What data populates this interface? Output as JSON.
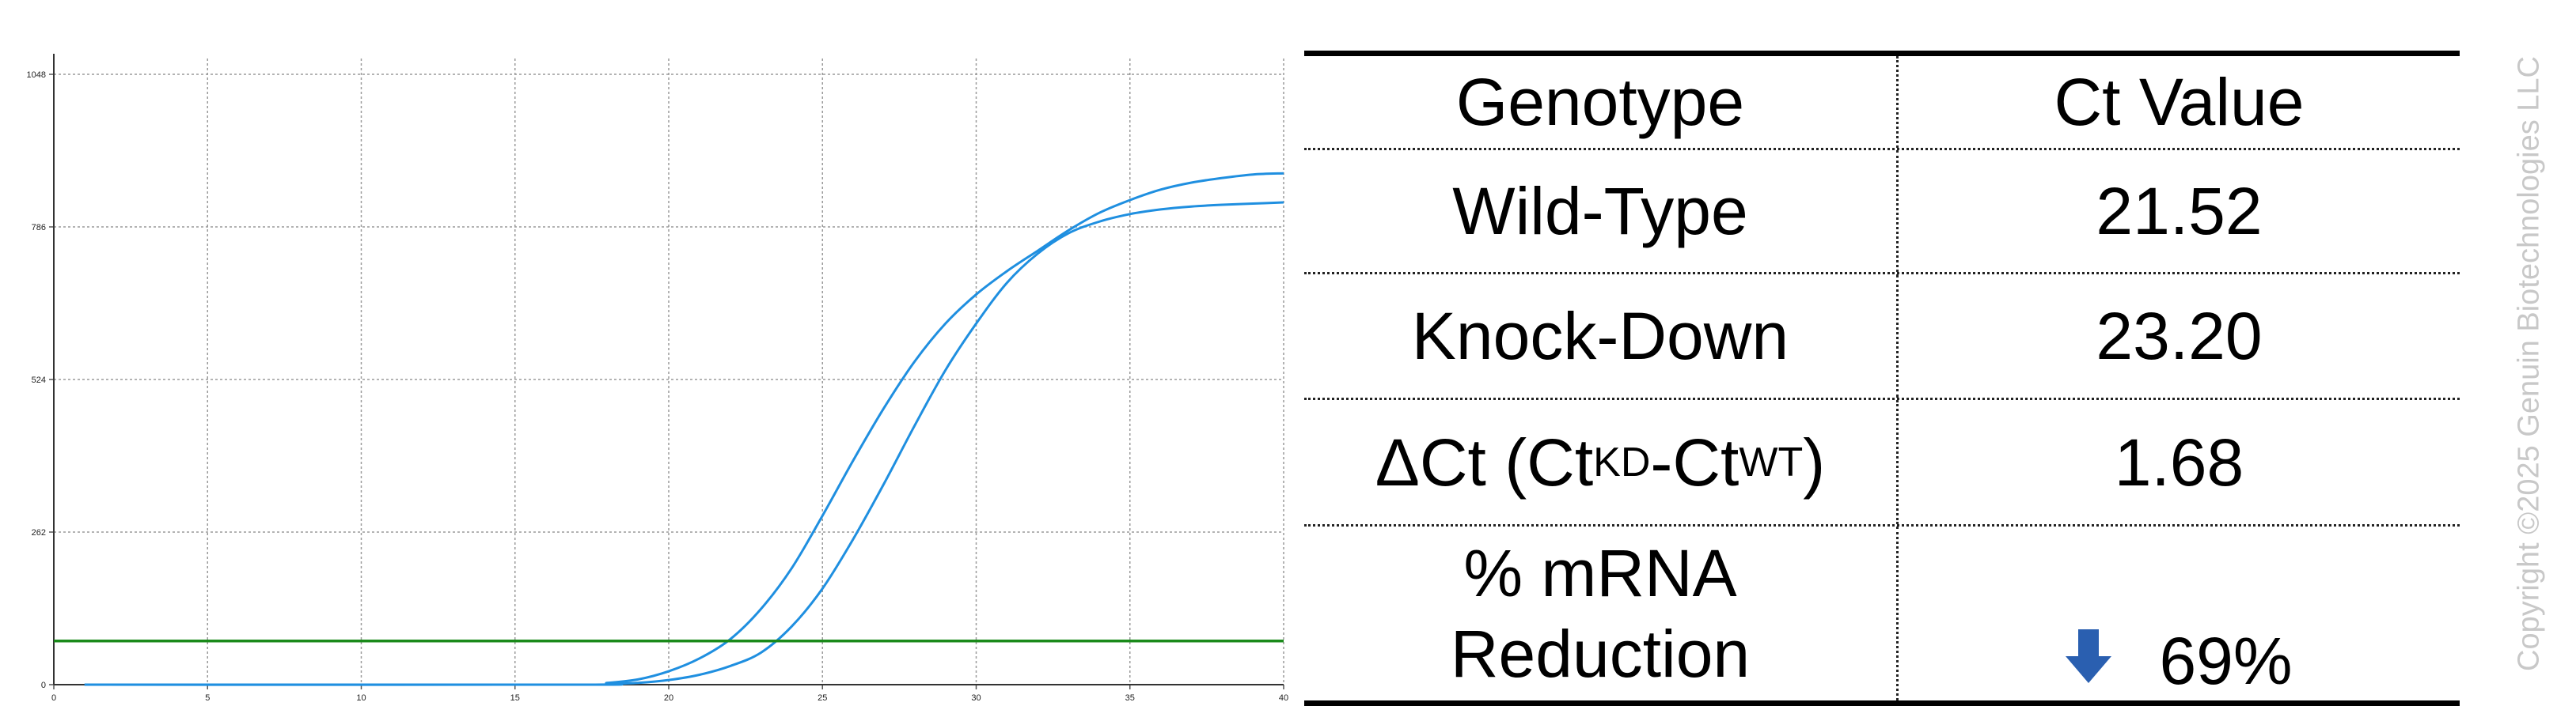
{
  "chart_data": {
    "type": "line",
    "xlim": [
      0,
      40
    ],
    "ylim": [
      0,
      1048
    ],
    "x_ticks": [
      "0",
      "5",
      "10",
      "15",
      "20",
      "25",
      "30",
      "35",
      "40"
    ],
    "y_ticks": [
      "0",
      "262",
      "524",
      "786",
      "1048"
    ],
    "grid": true,
    "series": [
      {
        "color": "#1f8fe0",
        "x": [
          1,
          17,
          18,
          19,
          20,
          21,
          22,
          23,
          24,
          25,
          26,
          27,
          28,
          29,
          30,
          31,
          32,
          33,
          34,
          35,
          36,
          37,
          38,
          39,
          40
        ],
        "y": [
          0,
          0,
          3,
          9,
          23,
          45,
          78,
          130,
          200,
          290,
          385,
          475,
          555,
          620,
          670,
          710,
          745,
          780,
          810,
          832,
          850,
          862,
          870,
          876,
          878
        ]
      },
      {
        "color": "#1f8fe0",
        "x": [
          1,
          17,
          18,
          19,
          20,
          21,
          22,
          23,
          24,
          25,
          26,
          27,
          28,
          29,
          30,
          31,
          32,
          33,
          34,
          35,
          36,
          37,
          38,
          39,
          40
        ],
        "y": [
          0,
          0,
          1,
          3,
          8,
          17,
          32,
          55,
          100,
          165,
          250,
          345,
          445,
          540,
          620,
          690,
          740,
          775,
          795,
          808,
          816,
          821,
          824,
          826,
          828
        ]
      }
    ],
    "threshold": {
      "y": 75,
      "color": "#1a8a1a"
    }
  },
  "table": {
    "headers": [
      "Genotype",
      "Ct Value"
    ],
    "rows": [
      {
        "label": "Wild-Type",
        "value": "21.52"
      },
      {
        "label": "Knock-Down",
        "value": "23.20"
      }
    ],
    "delta_row": {
      "prefix": "ΔCt (Ct",
      "sub_kd": "KD",
      "mid": "-Ct",
      "sub_wt": "WT",
      "suffix": ")",
      "value": "1.68"
    },
    "reduction_row": {
      "label_line1": "% mRNA",
      "label_line2": "Reduction",
      "value": "69%",
      "arrow_icon": "down-arrow-icon",
      "arrow_color": "#2a5fb0"
    }
  },
  "copyright": "Copyright ©2025 Genuin Biotechnologies LLC"
}
